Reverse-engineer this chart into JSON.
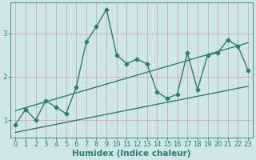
{
  "xlabel": "Humidex (Indice chaleur)",
  "ylabel": "",
  "background_color": "#cde8e4",
  "grid_color": "#b0d8d2",
  "line_color": "#2e7d6e",
  "xlim": [
    -0.5,
    23.5
  ],
  "ylim": [
    0.6,
    3.7
  ],
  "yticks": [
    1,
    2,
    3
  ],
  "xticks": [
    0,
    1,
    2,
    3,
    4,
    5,
    6,
    7,
    8,
    9,
    10,
    11,
    12,
    13,
    14,
    15,
    16,
    17,
    18,
    19,
    20,
    21,
    22,
    23
  ],
  "curve_x": [
    0,
    1,
    2,
    3,
    4,
    5,
    6,
    7,
    8,
    9,
    10,
    11,
    12,
    13,
    14,
    15,
    16,
    17,
    18,
    19,
    20,
    21,
    22,
    23
  ],
  "curve_y": [
    0.9,
    1.25,
    1.0,
    1.45,
    1.3,
    1.15,
    1.75,
    2.8,
    3.15,
    3.55,
    2.5,
    2.3,
    2.4,
    2.3,
    1.65,
    1.5,
    1.6,
    2.55,
    1.7,
    2.5,
    2.55,
    2.85,
    2.7,
    2.15
  ],
  "lower_line_x": [
    0,
    23
  ],
  "lower_line_y": [
    0.72,
    1.78
  ],
  "upper_line_x": [
    0,
    23
  ],
  "upper_line_y": [
    1.22,
    2.78
  ],
  "marker": "D",
  "markersize": 2.5,
  "linewidth": 1.0,
  "tick_fontsize": 6,
  "label_fontsize": 7.5
}
